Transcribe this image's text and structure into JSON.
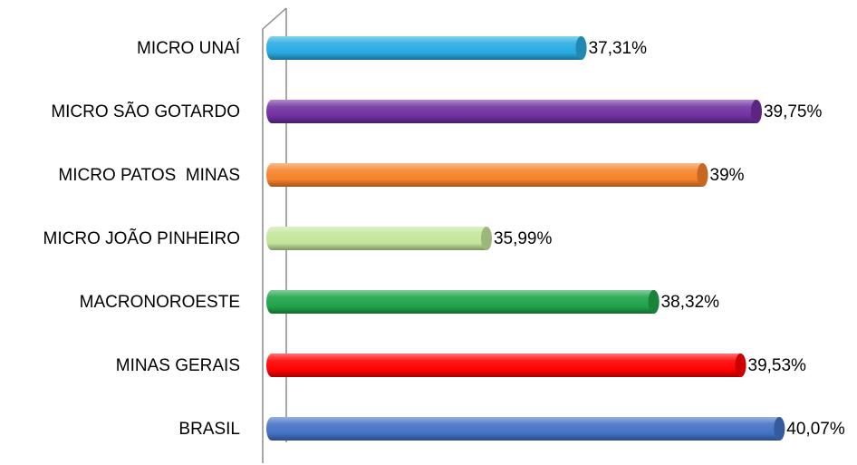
{
  "chart_data": {
    "type": "bar",
    "orientation": "horizontal",
    "categories": [
      "MICRO UNAÍ",
      "MICRO SÃO GOTARDO",
      "MICRO PATOS  MINAS",
      "MICRO JOÃO PINHEIRO",
      "MACRONOROESTE",
      "MINAS GERAIS",
      "BRASIL"
    ],
    "values": [
      37.31,
      39.75,
      39,
      35.99,
      38.32,
      39.53,
      40.07
    ],
    "value_labels": [
      "37,31%",
      "39,75%",
      "39%",
      "35,99%",
      "38,32%",
      "39,53%",
      "40,07%"
    ],
    "colors": [
      "#29aae1",
      "#7030a0",
      "#f5822b",
      "#c3e59a",
      "#1fa34a",
      "#ff0000",
      "#4472c4"
    ],
    "xlim": [
      33,
      41
    ]
  }
}
